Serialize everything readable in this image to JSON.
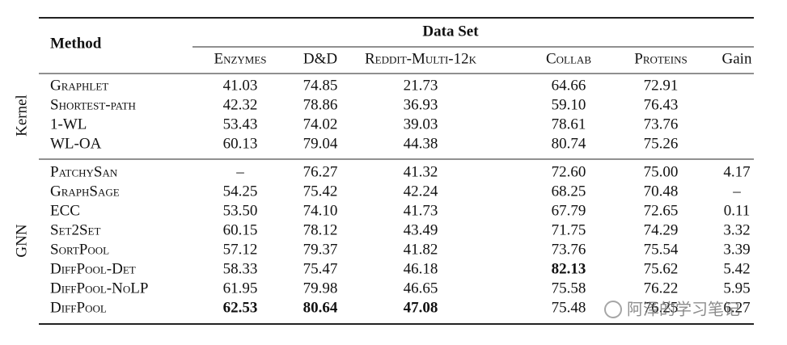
{
  "table": {
    "header": {
      "method": "Method",
      "dataset": "Data Set",
      "columns": [
        "Enzymes",
        "D&D",
        "Reddit-Multi-12k",
        "Collab",
        "Proteins",
        "Gain"
      ]
    },
    "groups": [
      {
        "label": "Kernel",
        "rows": [
          [
            "Graphlet",
            "41.03",
            "74.85",
            "21.73",
            "64.66",
            "72.91"
          ],
          [
            "Shortest-path",
            "42.32",
            "78.86",
            "36.93",
            "59.10",
            "76.43"
          ],
          [
            "1-WL",
            "53.43",
            "74.02",
            "39.03",
            "78.61",
            "73.76"
          ],
          [
            "WL-OA",
            "60.13",
            "79.04",
            "44.38",
            "80.74",
            "75.26"
          ]
        ]
      },
      {
        "label": "GNN",
        "rows": [
          [
            "PatchySan",
            "–",
            "76.27",
            "41.32",
            "72.60",
            "75.00",
            "4.17"
          ],
          [
            "GraphSage",
            "54.25",
            "75.42",
            "42.24",
            "68.25",
            "70.48",
            "–"
          ],
          [
            "ECC",
            "53.50",
            "74.10",
            "41.73",
            "67.79",
            "72.65",
            "0.11"
          ],
          [
            "Set2Set",
            "60.15",
            "78.12",
            "43.49",
            "71.75",
            "74.29",
            "3.32"
          ],
          [
            "SortPool",
            "57.12",
            "79.37",
            "41.82",
            "73.76",
            "75.54",
            "3.39"
          ],
          [
            "DiffPool-Det",
            "58.33",
            "75.47",
            "46.18",
            "82.13",
            "75.62",
            "5.42"
          ],
          [
            "DiffPool-NoLP",
            "61.95",
            "79.98",
            "46.65",
            "75.58",
            "76.22",
            "5.95"
          ],
          [
            "DiffPool",
            "62.53",
            "80.64",
            "47.08",
            "75.48",
            "76.25",
            "6.27"
          ]
        ]
      }
    ]
  },
  "watermark": "阿泽的学习笔记"
}
